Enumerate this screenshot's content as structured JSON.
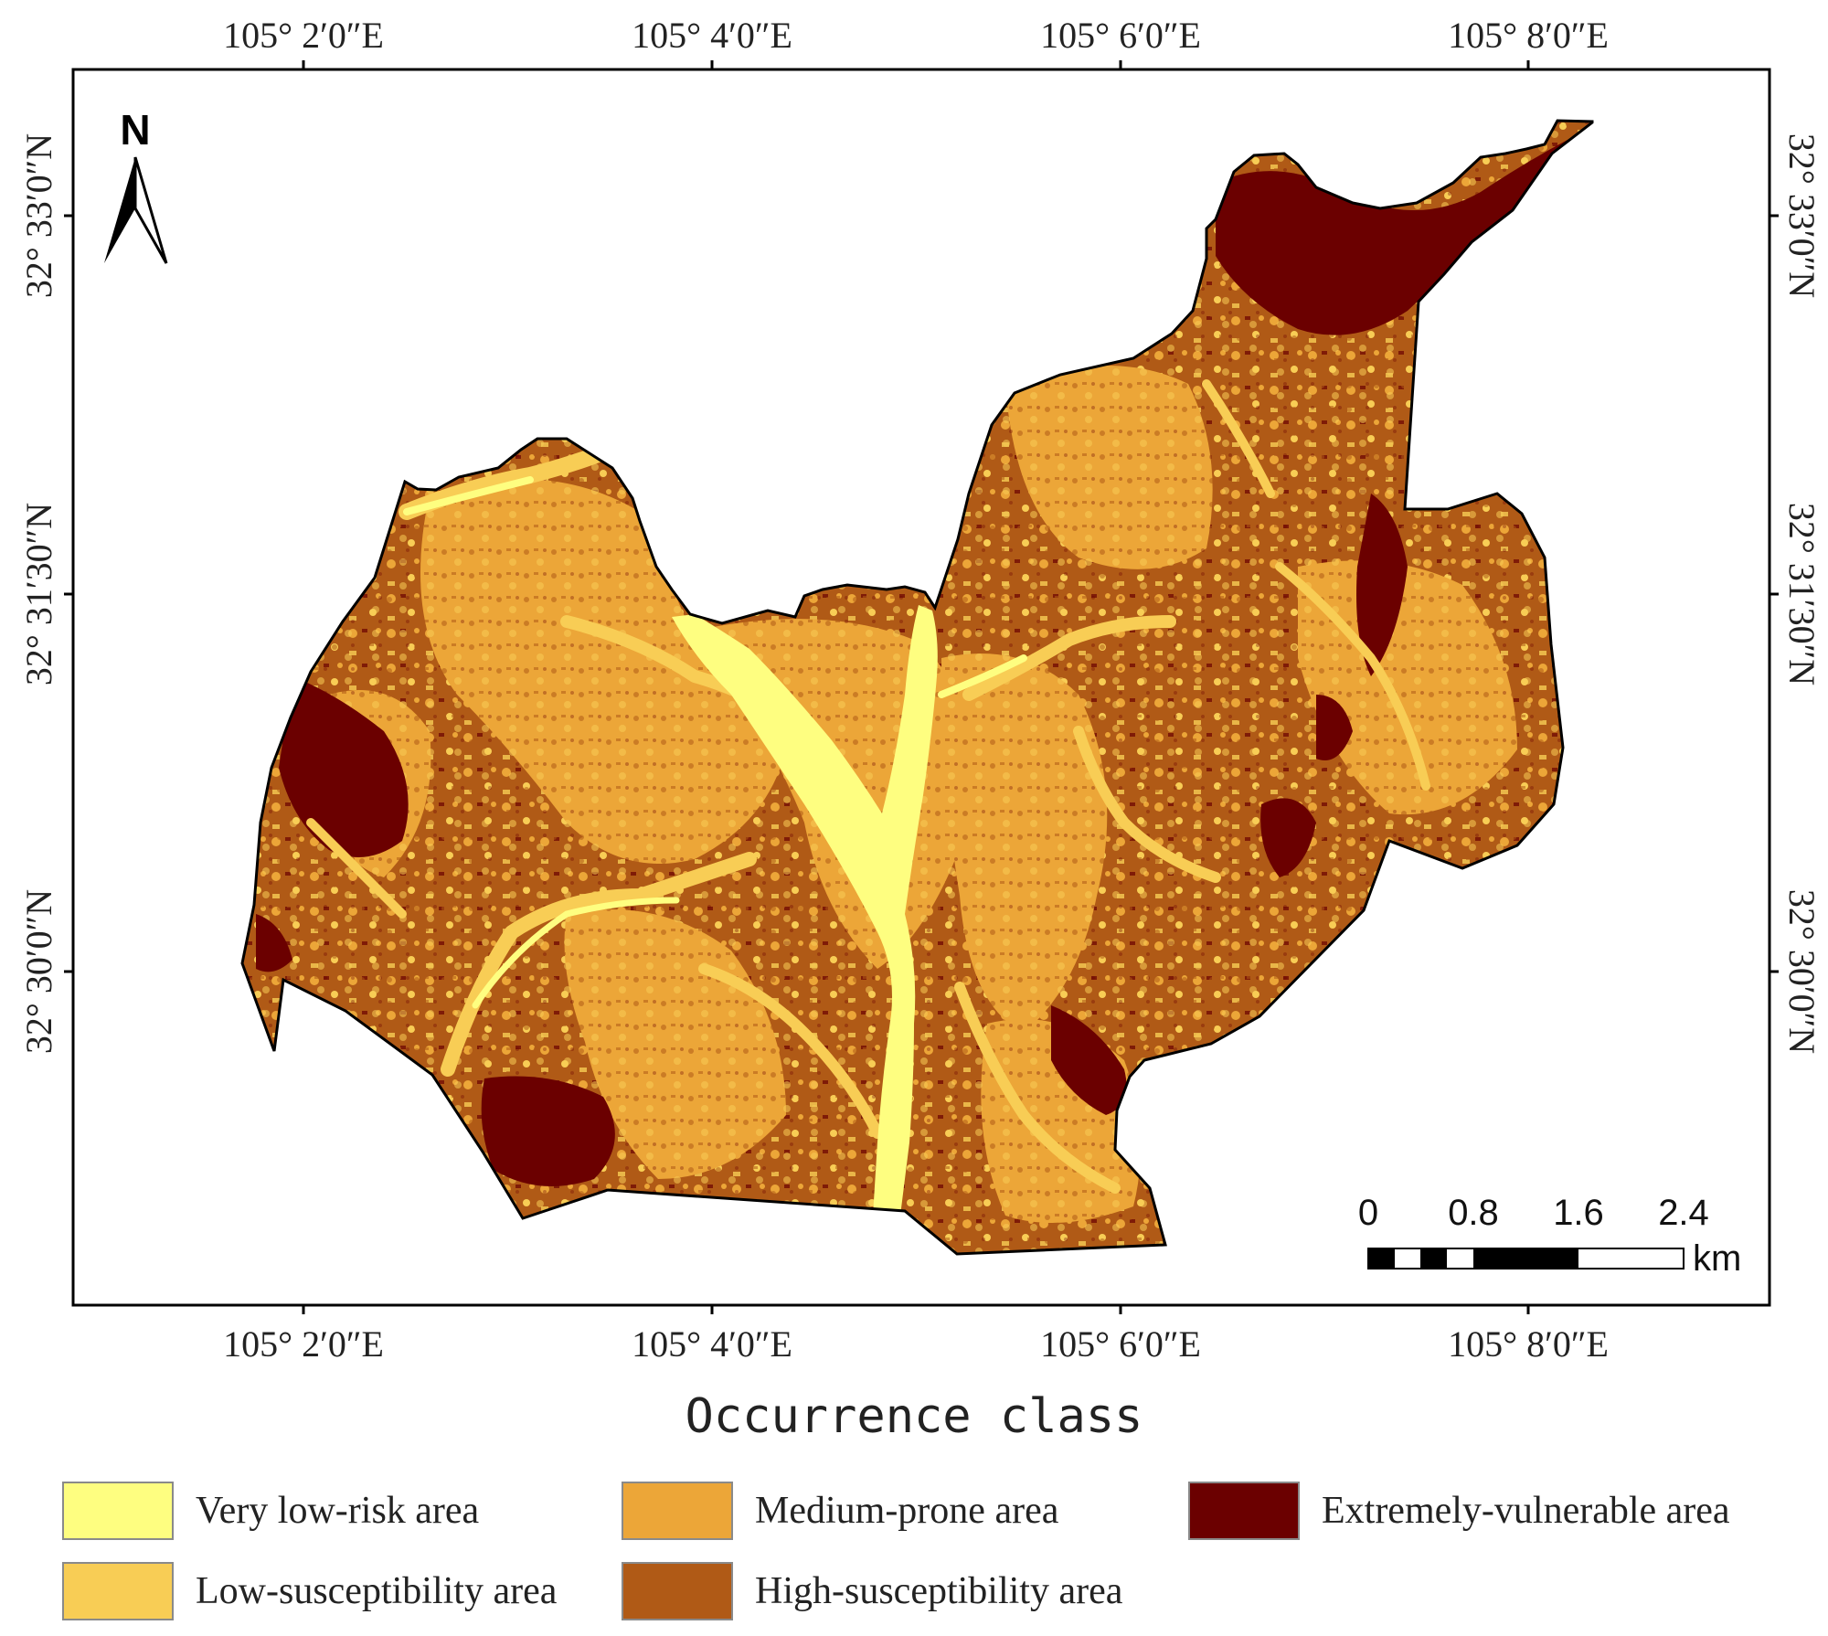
{
  "map": {
    "top_lon_labels": [
      "105° 2′0″E",
      "105° 4′0″E",
      "105° 6′0″E",
      "105° 8′0″E"
    ],
    "bottom_lon_labels": [
      "105° 2′0″E",
      "105° 4′0″E",
      "105° 6′0″E",
      "105° 8′0″E"
    ],
    "left_lat_labels": [
      "32° 33′0″N",
      "32° 31′30″N",
      "32° 30′0″N"
    ],
    "right_lat_labels": [
      "32° 33′0″N",
      "32° 31′30″N",
      "32° 30′0″N"
    ],
    "north_arrow_label": "N",
    "scale_bar": {
      "labels": [
        "0",
        "0.8",
        "1.6",
        "2.4"
      ],
      "unit": "km"
    }
  },
  "legend": {
    "title": "Occurrence class",
    "items": [
      {
        "label": "Very low-risk area",
        "color": "#fefe80"
      },
      {
        "label": "Low-susceptibility area",
        "color": "#f8cd55"
      },
      {
        "label": "Medium-prone area",
        "color": "#eca638"
      },
      {
        "label": "High-susceptibility area",
        "color": "#b05a16"
      },
      {
        "label": "Extremely-vulnerable area",
        "color": "#6b0000"
      }
    ]
  }
}
